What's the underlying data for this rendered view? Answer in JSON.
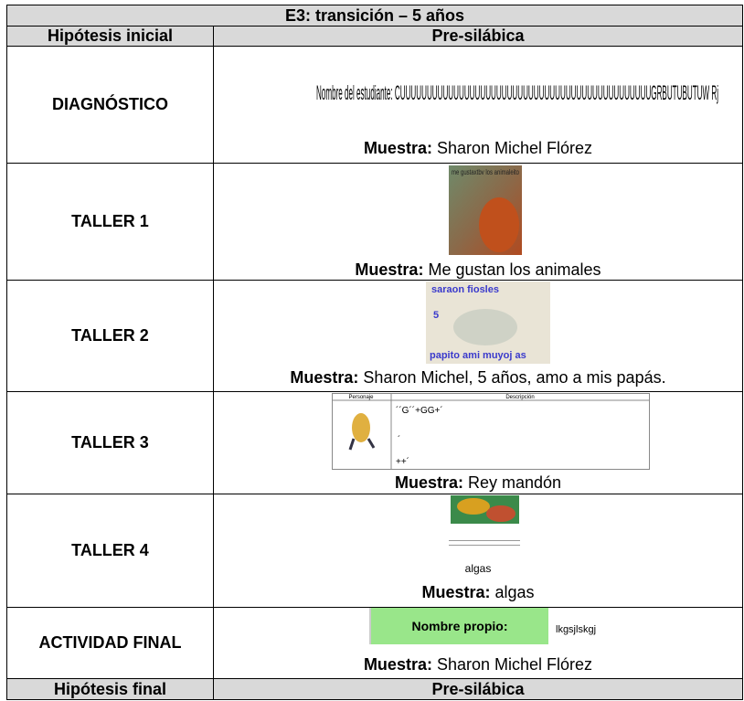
{
  "header": {
    "title": "E3: transición – 5 años"
  },
  "hypothesis_initial": {
    "label": "Hipótesis inicial",
    "value": "Pre-silábica"
  },
  "rows": [
    {
      "label": "DIAGNÓSTICO",
      "image_text": [
        "Nombre del estudiante: CUUUUUUUUUUUUUUUUUUUUUUUUUUUUUUUUUUUUUUUUUUUUUUUGRBUTUBUTUW Rj"
      ],
      "sample_label": "Muestra:",
      "sample": "Sharon Michel Flórez"
    },
    {
      "label": "TALLER 1",
      "image_text": [
        "me gustaxtbv los animaleito"
      ],
      "sample_label": "Muestra:",
      "sample": "Me gustan los animales"
    },
    {
      "label": "TALLER 2",
      "image_text": [
        "saraon fiosles",
        "5",
        "papito ami muyoj as"
      ],
      "sample_label": "Muestra:",
      "sample": "Sharon Michel, 5 años, amo a mis papás."
    },
    {
      "label": "TALLER 3",
      "image_text": [
        "Personaje",
        "Descripción",
        "´´G´´+GG+´",
        "´",
        "++´"
      ],
      "sample_label": "Muestra:",
      "sample": "Rey mandón"
    },
    {
      "label": "TALLER 4",
      "image_text": [
        "algas"
      ],
      "sample_label": "Muestra:",
      "sample": "algas"
    },
    {
      "label": "ACTIVIDAD FINAL",
      "image_text": [
        "Nombre propio:",
        "lkgsjlskgj"
      ],
      "sample_label": "Muestra:",
      "sample": "Sharon Michel Flórez"
    }
  ],
  "hypothesis_final": {
    "label": "Hipótesis final",
    "value": "Pre-silábica"
  }
}
